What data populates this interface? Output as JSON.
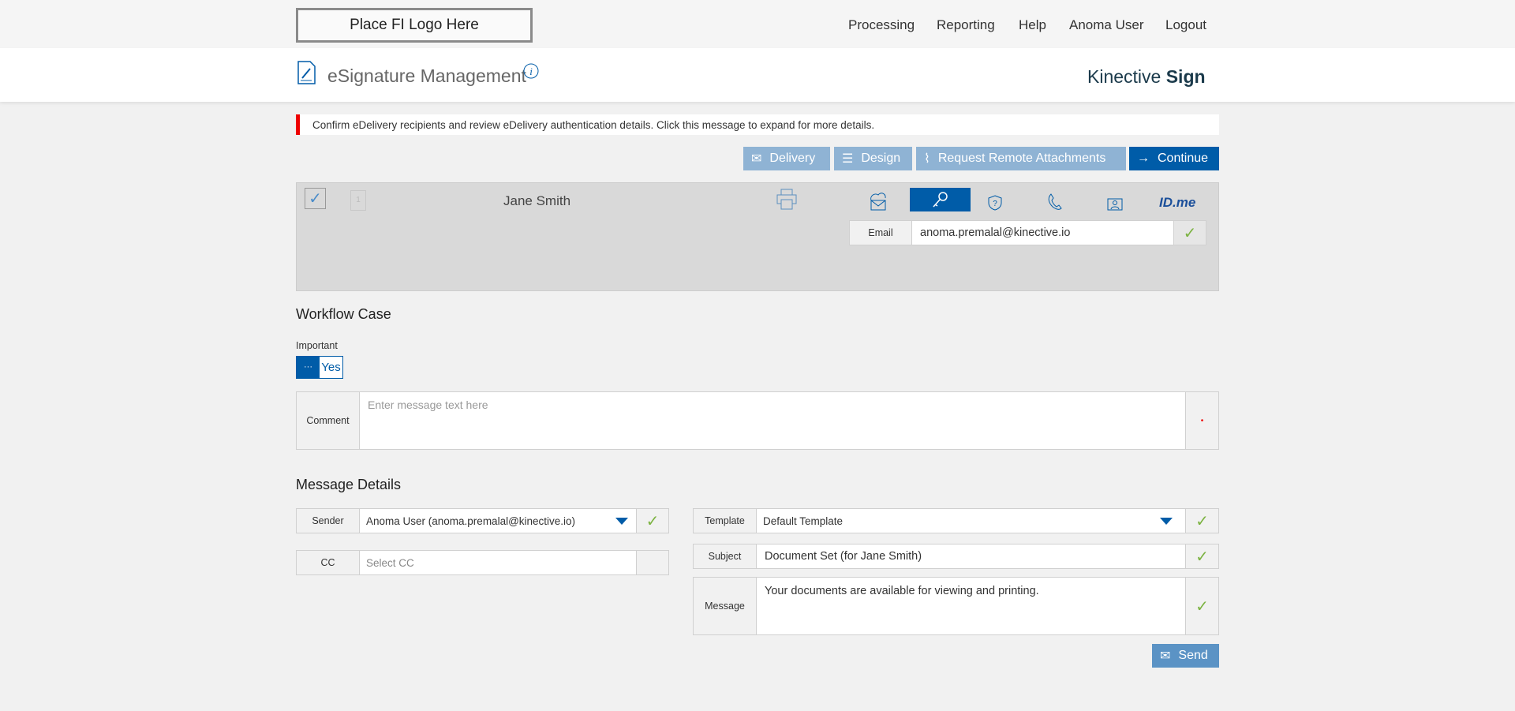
{
  "topbar": {
    "logo": "Place FI Logo Here",
    "nav": [
      "Processing",
      "Reporting",
      "Help",
      "Anoma User",
      "Logout"
    ]
  },
  "header": {
    "title": "eSignature Management",
    "brand_a": "Kinective ",
    "brand_b": "Sign"
  },
  "alert": "Confirm eDelivery recipients and review eDelivery authentication details. Click this message to expand for more details.",
  "actions": {
    "delivery": "Delivery",
    "design": "Design",
    "attachments": "Request Remote Attachments",
    "continue": "Continue"
  },
  "recipient": {
    "name": "Jane Smith",
    "doc_count": "1",
    "auth_label": "Email",
    "auth_value": "anoma.premalal@kinective.io",
    "idme": "ID.me"
  },
  "workflow": {
    "heading": "Workflow Case",
    "important_label": "Important",
    "toggle_off": "···",
    "toggle_on": "Yes",
    "comment_label": "Comment",
    "comment_placeholder": "Enter message text here"
  },
  "message": {
    "heading": "Message Details",
    "sender_label": "Sender",
    "sender_value": "Anoma User (anoma.premalal@kinective.io)",
    "cc_label": "CC",
    "cc_placeholder": "Select CC",
    "template_label": "Template",
    "template_value": "Default Template",
    "subject_label": "Subject",
    "subject_value": "Document Set (for Jane Smith)",
    "message_label": "Message",
    "message_value": "Your documents are available for viewing and printing.",
    "send": "Send"
  },
  "colors": {
    "primary": "#005ca8",
    "light_button": "#8fb3d4",
    "alert": "#ee0000",
    "check": "#7cb342"
  }
}
